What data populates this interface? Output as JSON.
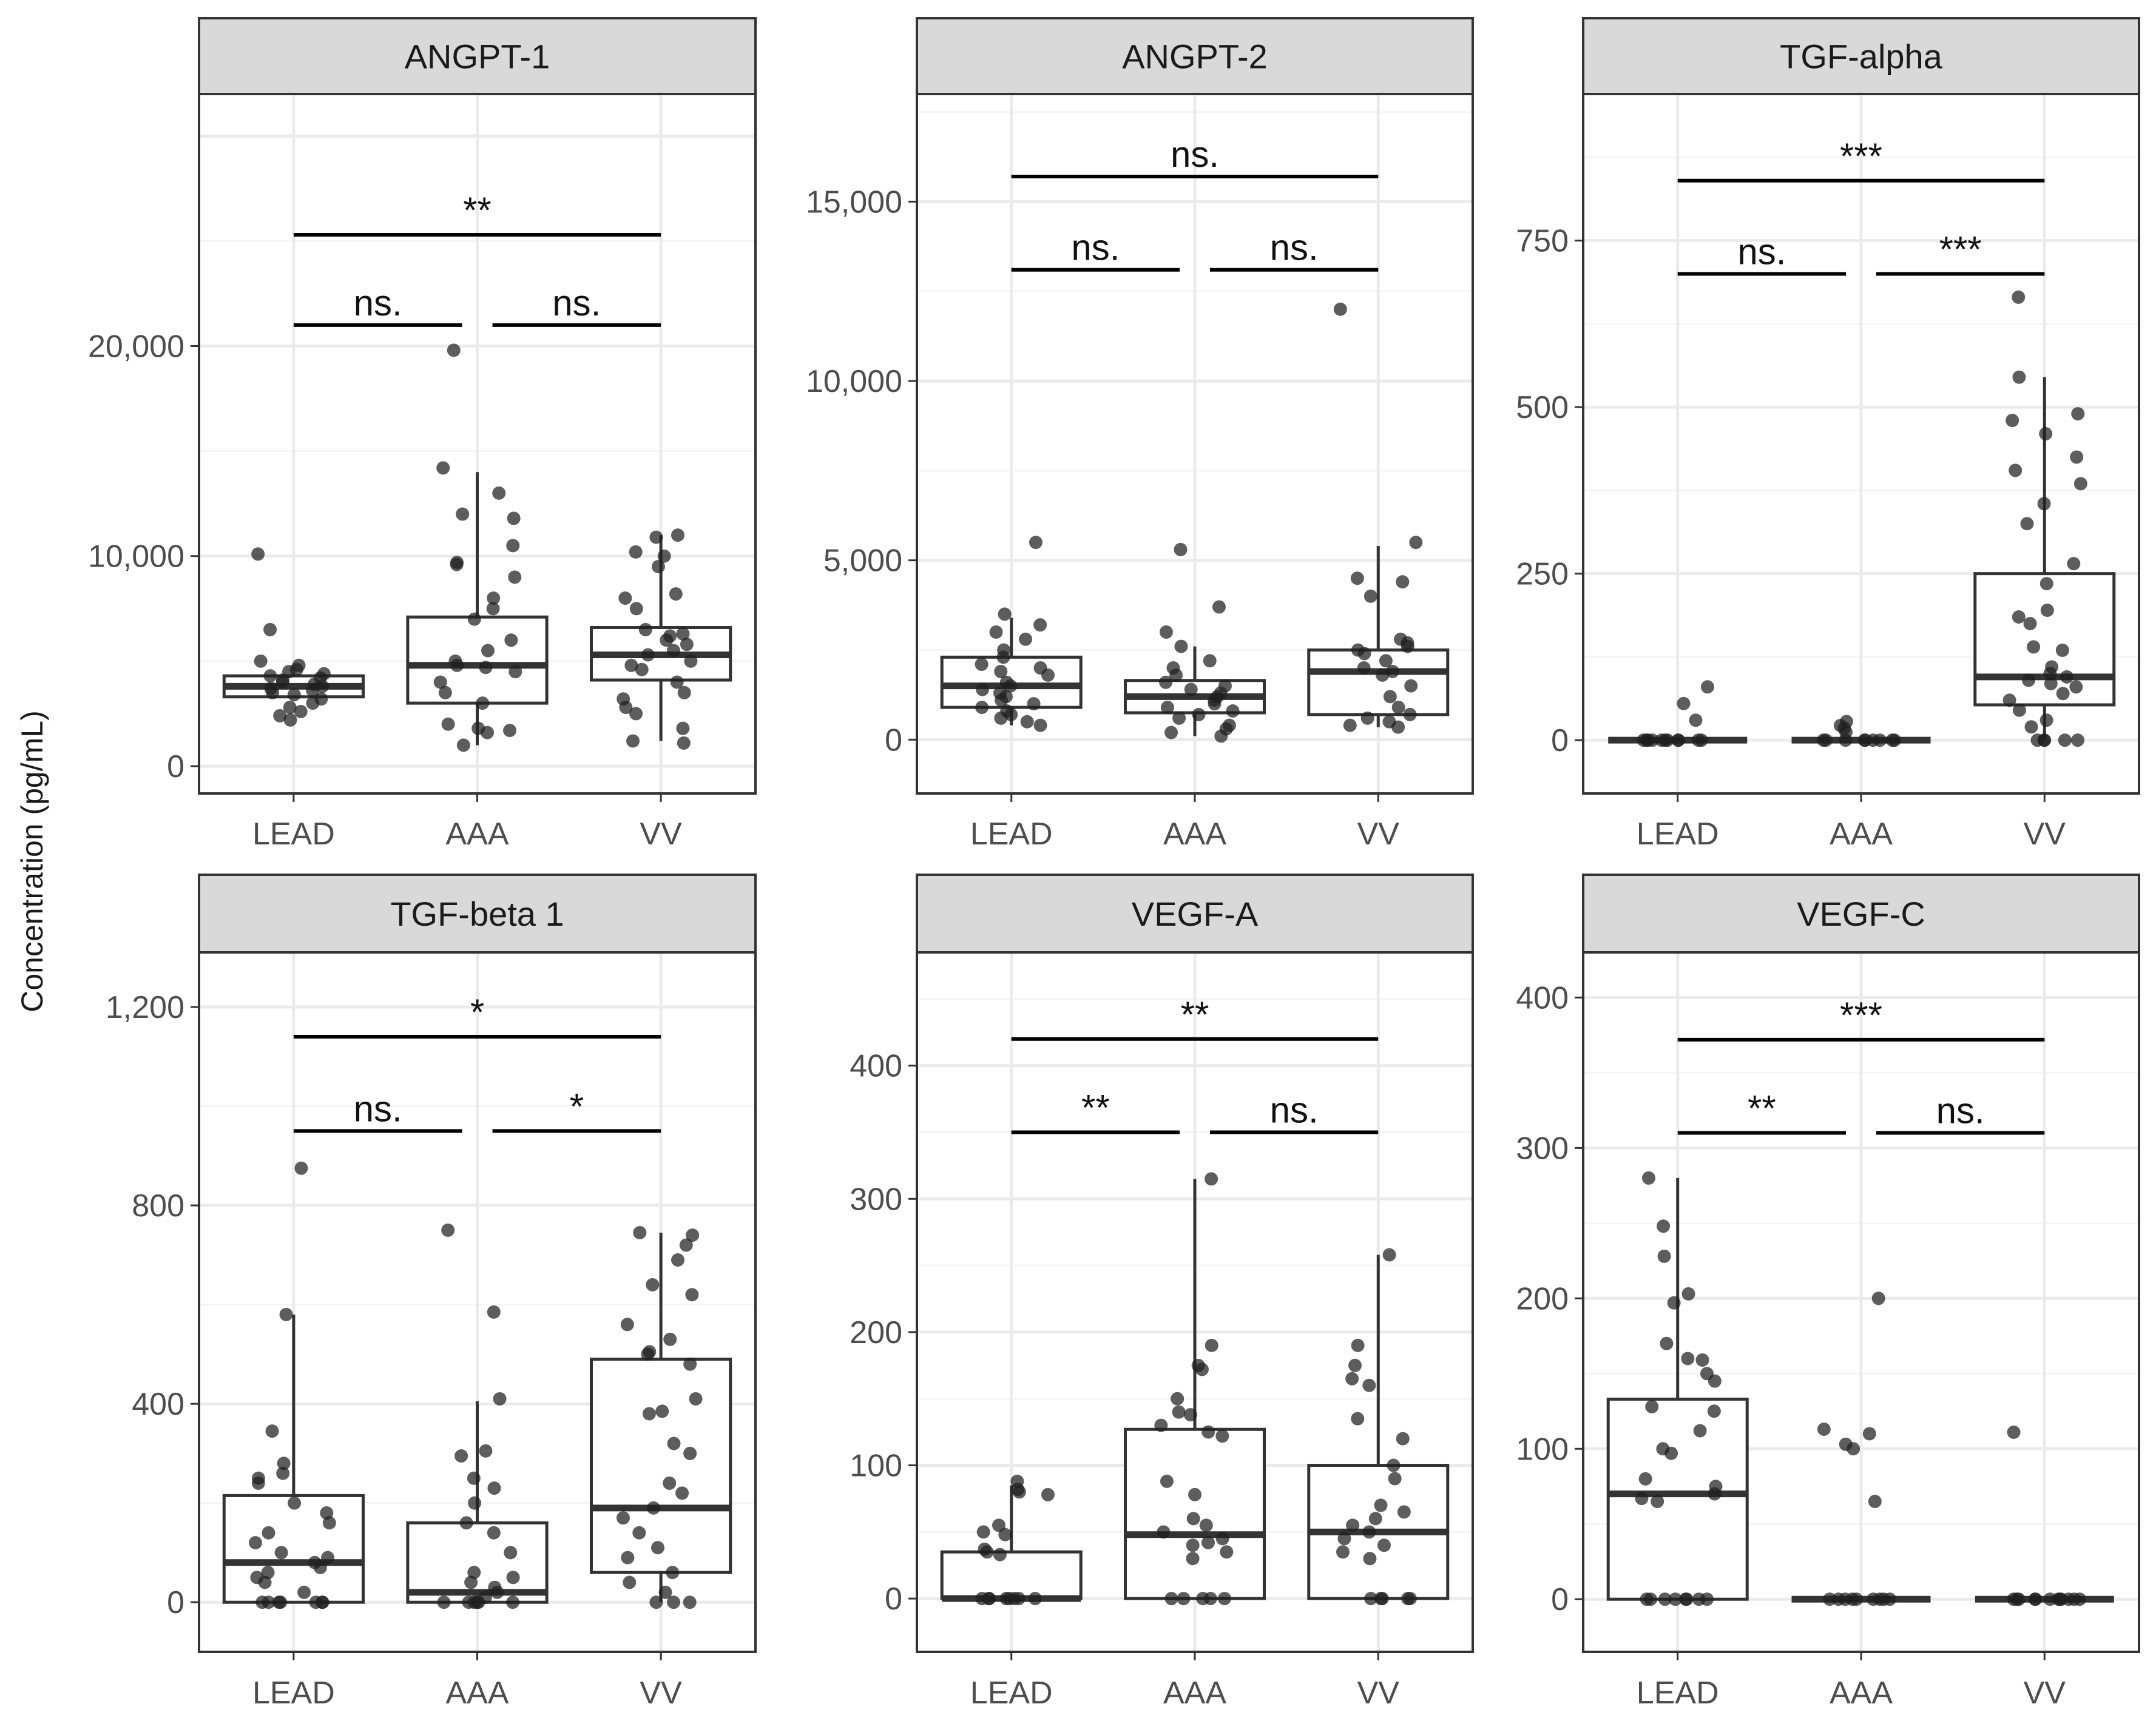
{
  "figure": {
    "ylabel": "Concentration (pg/mL)",
    "colors": {
      "strip_fill": "#d9d9d9",
      "panel_border": "#333333",
      "grid_major": "#ebebeb",
      "grid_minor": "#f5f5f5",
      "point": "#1f1f1f",
      "box": "#333333"
    }
  },
  "chart_data": [
    {
      "type": "box",
      "title": "ANGPT-1",
      "categories": [
        "LEAD",
        "AAA",
        "VV"
      ],
      "ylim": [
        -1300,
        32000
      ],
      "yticks": [
        0,
        10000,
        20000
      ],
      "ytick_labels": [
        "0",
        "10,000",
        "20,000"
      ],
      "boxes": [
        {
          "category": "LEAD",
          "q1": 3300,
          "median": 3800,
          "q3": 4300,
          "whisker_low": 3300,
          "whisker_high": 4300
        },
        {
          "category": "AAA",
          "q1": 3000,
          "median": 4800,
          "q3": 7100,
          "whisker_low": 1000,
          "whisker_high": 14000
        },
        {
          "category": "VV",
          "q1": 4100,
          "median": 5300,
          "q3": 6600,
          "whisker_low": 1200,
          "whisker_high": 11000
        }
      ],
      "points": [
        {
          "category": "LEAD",
          "values": [
            10100,
            6500,
            5000,
            4800,
            4600,
            4500,
            4400,
            4300,
            4200,
            4100,
            4000,
            3900,
            3800,
            3700,
            3600,
            3500,
            3400,
            3200,
            3000,
            2800,
            2600,
            2400,
            2200
          ]
        },
        {
          "category": "AAA",
          "values": [
            19800,
            14200,
            13000,
            12000,
            11800,
            10500,
            9700,
            9600,
            9000,
            8000,
            7500,
            7000,
            6000,
            5500,
            5000,
            4800,
            4700,
            4500,
            4000,
            3500,
            3000,
            2000,
            1800,
            1700,
            1600,
            1000
          ]
        },
        {
          "category": "VV",
          "values": [
            11000,
            10900,
            10200,
            10000,
            9500,
            8200,
            8000,
            7500,
            6500,
            6300,
            6200,
            6000,
            5800,
            5500,
            5300,
            5000,
            4800,
            4600,
            4000,
            3500,
            3200,
            2800,
            2500,
            1800,
            1200,
            1100
          ]
        }
      ],
      "comparisons": [
        {
          "from": "LEAD",
          "to": "VV",
          "label": "**",
          "y": 25300
        },
        {
          "from": "LEAD",
          "to": "AAA",
          "label": "ns.",
          "y": 21000
        },
        {
          "from": "AAA",
          "to": "VV",
          "label": "ns.",
          "y": 21000
        }
      ]
    },
    {
      "type": "box",
      "title": "ANGPT-2",
      "categories": [
        "LEAD",
        "AAA",
        "VV"
      ],
      "ylim": [
        -1500,
        18000
      ],
      "yticks": [
        0,
        5000,
        10000,
        15000
      ],
      "ytick_labels": [
        "0",
        "5,000",
        "10,000",
        "15,000"
      ],
      "boxes": [
        {
          "category": "LEAD",
          "q1": 900,
          "median": 1500,
          "q3": 2300,
          "whisker_low": 400,
          "whisker_high": 3400
        },
        {
          "category": "AAA",
          "q1": 750,
          "median": 1200,
          "q3": 1650,
          "whisker_low": 100,
          "whisker_high": 2600
        },
        {
          "category": "VV",
          "q1": 700,
          "median": 1900,
          "q3": 2500,
          "whisker_low": 350,
          "whisker_high": 5400
        }
      ],
      "points": [
        {
          "category": "LEAD",
          "values": [
            5500,
            3500,
            3200,
            3000,
            2800,
            2500,
            2300,
            2100,
            2000,
            1900,
            1800,
            1600,
            1500,
            1400,
            1300,
            1200,
            1100,
            1000,
            900,
            800,
            700,
            600,
            500,
            400
          ]
        },
        {
          "category": "AAA",
          "values": [
            5300,
            3700,
            3000,
            2600,
            2200,
            2000,
            1800,
            1600,
            1500,
            1400,
            1300,
            1200,
            1100,
            1000,
            900,
            800,
            700,
            600,
            400,
            300,
            200,
            100
          ]
        },
        {
          "category": "VV",
          "values": [
            12000,
            5500,
            4500,
            4400,
            4000,
            2800,
            2700,
            2600,
            2500,
            2400,
            2200,
            2000,
            1900,
            1800,
            1500,
            1200,
            900,
            700,
            600,
            500,
            400,
            350
          ]
        }
      ],
      "comparisons": [
        {
          "from": "LEAD",
          "to": "VV",
          "label": "ns.",
          "y": 15700
        },
        {
          "from": "LEAD",
          "to": "AAA",
          "label": "ns.",
          "y": 13100
        },
        {
          "from": "AAA",
          "to": "VV",
          "label": "ns.",
          "y": 13100
        }
      ]
    },
    {
      "type": "box",
      "title": "TGF-alpha",
      "categories": [
        "LEAD",
        "AAA",
        "VV"
      ],
      "ylim": [
        -80,
        970
      ],
      "yticks": [
        0,
        250,
        500,
        750
      ],
      "ytick_labels": [
        "0",
        "250",
        "500",
        "750"
      ],
      "boxes": [
        {
          "category": "LEAD",
          "q1": 0,
          "median": 0,
          "q3": 0,
          "whisker_low": 0,
          "whisker_high": 0
        },
        {
          "category": "AAA",
          "q1": 0,
          "median": 0,
          "q3": 0,
          "whisker_low": 0,
          "whisker_high": 0
        },
        {
          "category": "VV",
          "q1": 53,
          "median": 95,
          "q3": 250,
          "whisker_low": 0,
          "whisker_high": 545
        }
      ],
      "points": [
        {
          "category": "LEAD",
          "values": [
            80,
            55,
            30,
            0,
            0,
            0,
            0,
            0,
            0,
            0,
            0,
            0,
            0,
            0
          ]
        },
        {
          "category": "AAA",
          "values": [
            28,
            22,
            18,
            12,
            0,
            0,
            0,
            0,
            0,
            0,
            0,
            0,
            0
          ]
        },
        {
          "category": "VV",
          "values": [
            665,
            545,
            490,
            480,
            460,
            425,
            405,
            385,
            355,
            325,
            265,
            235,
            195,
            185,
            175,
            140,
            135,
            110,
            100,
            95,
            90,
            85,
            80,
            70,
            60,
            45,
            30,
            20,
            0,
            0,
            0,
            0,
            0
          ]
        }
      ],
      "comparisons": [
        {
          "from": "LEAD",
          "to": "VV",
          "label": "***",
          "y": 840
        },
        {
          "from": "LEAD",
          "to": "AAA",
          "label": "ns.",
          "y": 700
        },
        {
          "from": "AAA",
          "to": "VV",
          "label": "***",
          "y": 700
        }
      ]
    },
    {
      "type": "box",
      "title": "TGF-beta 1",
      "categories": [
        "LEAD",
        "AAA",
        "VV"
      ],
      "ylim": [
        -100,
        1310
      ],
      "yticks": [
        0,
        400,
        800,
        1200
      ],
      "ytick_labels": [
        "0",
        "400",
        "800",
        "1,200"
      ],
      "boxes": [
        {
          "category": "LEAD",
          "q1": 0,
          "median": 80,
          "q3": 215,
          "whisker_low": 0,
          "whisker_high": 580
        },
        {
          "category": "AAA",
          "q1": 0,
          "median": 20,
          "q3": 160,
          "whisker_low": 0,
          "whisker_high": 405
        },
        {
          "category": "VV",
          "q1": 60,
          "median": 190,
          "q3": 490,
          "whisker_low": 0,
          "whisker_high": 745
        }
      ],
      "points": [
        {
          "category": "LEAD",
          "values": [
            875,
            580,
            345,
            280,
            260,
            250,
            240,
            200,
            180,
            160,
            140,
            120,
            100,
            90,
            80,
            70,
            60,
            50,
            40,
            20,
            0,
            0,
            0,
            0,
            0,
            0,
            0
          ]
        },
        {
          "category": "AAA",
          "values": [
            750,
            585,
            410,
            305,
            295,
            250,
            230,
            200,
            160,
            140,
            100,
            60,
            50,
            40,
            30,
            20,
            10,
            0,
            0,
            0,
            0,
            0,
            0
          ]
        },
        {
          "category": "VV",
          "values": [
            745,
            740,
            720,
            690,
            640,
            620,
            560,
            530,
            505,
            500,
            480,
            410,
            385,
            380,
            320,
            300,
            240,
            220,
            190,
            170,
            140,
            110,
            90,
            60,
            40,
            20,
            0,
            0,
            0
          ]
        }
      ],
      "comparisons": [
        {
          "from": "LEAD",
          "to": "VV",
          "label": "*",
          "y": 1140
        },
        {
          "from": "LEAD",
          "to": "AAA",
          "label": "ns.",
          "y": 950
        },
        {
          "from": "AAA",
          "to": "VV",
          "label": "*",
          "y": 950
        }
      ]
    },
    {
      "type": "box",
      "title": "VEGF-A",
      "categories": [
        "LEAD",
        "AAA",
        "VV"
      ],
      "ylim": [
        -40,
        485
      ],
      "yticks": [
        0,
        100,
        200,
        300,
        400
      ],
      "ytick_labels": [
        "0",
        "100",
        "200",
        "300",
        "400"
      ],
      "boxes": [
        {
          "category": "LEAD",
          "q1": 0,
          "median": 0,
          "q3": 35,
          "whisker_low": 0,
          "whisker_high": 85
        },
        {
          "category": "AAA",
          "q1": 0,
          "median": 48,
          "q3": 127,
          "whisker_low": 0,
          "whisker_high": 315
        },
        {
          "category": "VV",
          "q1": 0,
          "median": 50,
          "q3": 100,
          "whisker_low": 0,
          "whisker_high": 258
        }
      ],
      "points": [
        {
          "category": "LEAD",
          "values": [
            88,
            82,
            80,
            78,
            55,
            50,
            48,
            37,
            35,
            33,
            0,
            0,
            0,
            0,
            0,
            0,
            0,
            0
          ]
        },
        {
          "category": "AAA",
          "values": [
            315,
            190,
            175,
            172,
            150,
            140,
            138,
            130,
            125,
            122,
            88,
            78,
            60,
            55,
            50,
            45,
            42,
            40,
            35,
            30,
            0,
            0,
            0,
            0,
            0
          ]
        },
        {
          "category": "VV",
          "values": [
            258,
            190,
            175,
            165,
            160,
            135,
            120,
            100,
            90,
            70,
            65,
            60,
            55,
            50,
            45,
            40,
            35,
            30,
            0,
            0,
            0,
            0,
            0
          ]
        }
      ],
      "comparisons": [
        {
          "from": "LEAD",
          "to": "VV",
          "label": "**",
          "y": 420
        },
        {
          "from": "LEAD",
          "to": "AAA",
          "label": "**",
          "y": 350
        },
        {
          "from": "AAA",
          "to": "VV",
          "label": "ns.",
          "y": 350
        }
      ]
    },
    {
      "type": "box",
      "title": "VEGF-C",
      "categories": [
        "LEAD",
        "AAA",
        "VV"
      ],
      "ylim": [
        -35,
        430
      ],
      "yticks": [
        0,
        100,
        200,
        300,
        400
      ],
      "ytick_labels": [
        "0",
        "100",
        "200",
        "300",
        "400"
      ],
      "boxes": [
        {
          "category": "LEAD",
          "q1": 0,
          "median": 70,
          "q3": 133,
          "whisker_low": 0,
          "whisker_high": 280
        },
        {
          "category": "AAA",
          "q1": 0,
          "median": 0,
          "q3": 0,
          "whisker_low": 0,
          "whisker_high": 0
        },
        {
          "category": "VV",
          "q1": 0,
          "median": 0,
          "q3": 0,
          "whisker_low": 0,
          "whisker_high": 0
        }
      ],
      "points": [
        {
          "category": "LEAD",
          "values": [
            280,
            248,
            228,
            203,
            197,
            170,
            160,
            159,
            150,
            145,
            128,
            125,
            112,
            100,
            97,
            80,
            75,
            70,
            67,
            65,
            0,
            0,
            0,
            0,
            0,
            0,
            0,
            0
          ]
        },
        {
          "category": "AAA",
          "values": [
            200,
            113,
            110,
            103,
            100,
            65,
            0,
            0,
            0,
            0,
            0,
            0,
            0,
            0,
            0
          ]
        },
        {
          "category": "VV",
          "values": [
            111,
            0,
            0,
            0,
            0,
            0,
            0,
            0,
            0,
            0,
            0,
            0,
            0
          ]
        }
      ],
      "comparisons": [
        {
          "from": "LEAD",
          "to": "VV",
          "label": "***",
          "y": 372
        },
        {
          "from": "LEAD",
          "to": "AAA",
          "label": "**",
          "y": 310
        },
        {
          "from": "AAA",
          "to": "VV",
          "label": "ns.",
          "y": 310
        }
      ]
    }
  ]
}
